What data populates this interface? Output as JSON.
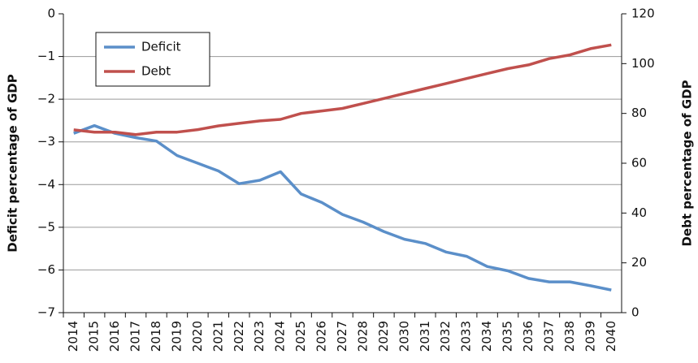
{
  "chart_data": {
    "type": "line",
    "y_label": "Deficit percentage of GDP",
    "y2_label": "Debt percentage of GDP",
    "categories": [
      "2014",
      "2015",
      "2016",
      "2017",
      "2018",
      "2019",
      "2020",
      "2021",
      "2022",
      "2023",
      "2024",
      "2025",
      "2026",
      "2027",
      "2028",
      "2029",
      "2030",
      "2031",
      "2032",
      "2033",
      "2034",
      "2035",
      "2036",
      "2037",
      "2038",
      "2039",
      "2040"
    ],
    "series": [
      {
        "name": "Deficit",
        "color": "#5b8fc9",
        "axis": "y",
        "values": [
          -2.8,
          -2.62,
          -2.8,
          -2.9,
          -2.98,
          -3.32,
          -3.5,
          -3.68,
          -3.98,
          -3.9,
          -3.7,
          -4.22,
          -4.42,
          -4.7,
          -4.88,
          -5.1,
          -5.28,
          -5.38,
          -5.58,
          -5.68,
          -5.92,
          -6.02,
          -6.2,
          -6.28,
          -6.28,
          -6.37,
          -6.47
        ]
      },
      {
        "name": "Debt",
        "color": "#c0504d",
        "axis": "y2",
        "values": [
          73.4,
          72.5,
          72.5,
          71.5,
          72.5,
          72.5,
          73.5,
          75,
          76,
          77,
          77.6,
          80,
          81,
          82,
          84,
          86,
          88,
          90,
          92,
          94,
          96,
          98,
          99.5,
          102,
          103.5,
          106,
          107.5
        ]
      }
    ],
    "ylim": [
      -7,
      0
    ],
    "yticks": [
      0,
      {
        "value": -1,
        "label": "−1"
      },
      {
        "value": -2,
        "label": "−2"
      },
      {
        "value": -3,
        "label": "−3"
      },
      {
        "value": -4,
        "label": "−4"
      },
      {
        "value": -5,
        "label": "−5"
      },
      {
        "value": -6,
        "label": "−6"
      },
      {
        "value": -7,
        "label": "−7"
      }
    ],
    "y2lim": [
      0,
      120
    ],
    "y2ticks": [
      0,
      20,
      40,
      60,
      80,
      100,
      120
    ],
    "grid": true,
    "legend": "upper-left"
  }
}
